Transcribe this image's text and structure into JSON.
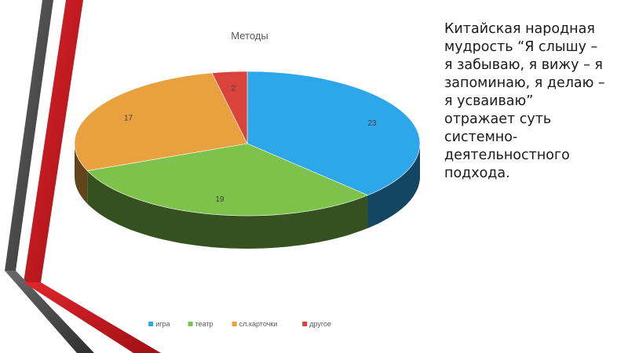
{
  "quote": {
    "text": "Китайская народная\nмудрость “Я слышу –\nя забываю, я вижу – я\nзапоминаю, я делаю –\nя  усваиваю”\nотражает суть\nсистемно-\nдеятельностного\nподхода."
  },
  "chart_data": {
    "type": "pie",
    "title": "Методы",
    "categories": [
      "игра",
      "театр",
      "сл.карточки",
      "другое"
    ],
    "values": [
      23,
      19,
      17,
      2
    ],
    "colors": [
      "#2ea7ea",
      "#7dc24a",
      "#e9a13f",
      "#d9433b"
    ],
    "legend": "bottom",
    "style": "3d"
  },
  "decor": {
    "stripe_dark": "#4a4a4a",
    "stripe_red": "#c8191f"
  }
}
